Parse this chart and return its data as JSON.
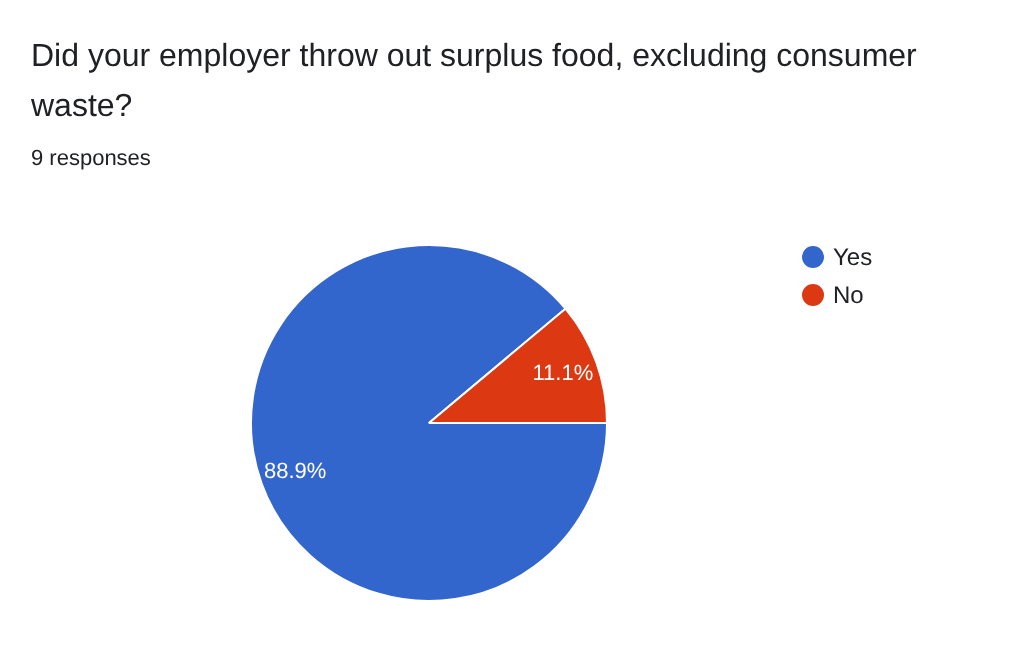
{
  "chart_data": {
    "type": "pie",
    "title": "Did your employer throw out surplus food, excluding consumer waste?",
    "subtitle": "9 responses",
    "categories": [
      "Yes",
      "No"
    ],
    "values": [
      88.9,
      11.1
    ],
    "colors": [
      "#3366cc",
      "#dc3912"
    ],
    "value_labels": [
      "88.9%",
      "11.1%"
    ],
    "legend": "right"
  }
}
